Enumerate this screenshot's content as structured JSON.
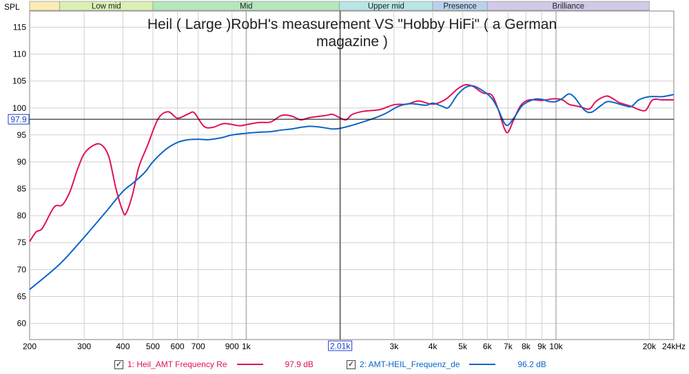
{
  "chart_data": {
    "type": "line",
    "title_lines": [
      "Heil ( Large )RobH's measurement VS \"Hobby HiFi\" ( a German",
      "magazine )"
    ],
    "ylabel": "SPL",
    "xlabel": "",
    "x_scale": "log",
    "xlim": [
      200,
      24000
    ],
    "ylim": [
      57,
      118
    ],
    "y_ticks": [
      60,
      65,
      70,
      75,
      80,
      85,
      90,
      95,
      100,
      105,
      110,
      115
    ],
    "x_ticks": [
      {
        "v": 200,
        "label": "200"
      },
      {
        "v": 300,
        "label": "300"
      },
      {
        "v": 400,
        "label": "400"
      },
      {
        "v": 500,
        "label": "500"
      },
      {
        "v": 600,
        "label": "600"
      },
      {
        "v": 700,
        "label": "700"
      },
      {
        "v": 900,
        "label": "900"
      },
      {
        "v": 1000,
        "label": "1k"
      },
      {
        "v": 3000,
        "label": "3k"
      },
      {
        "v": 4000,
        "label": "4k"
      },
      {
        "v": 5000,
        "label": "5k"
      },
      {
        "v": 6000,
        "label": "6k"
      },
      {
        "v": 7000,
        "label": "7k"
      },
      {
        "v": 8000,
        "label": "8k"
      },
      {
        "v": 9000,
        "label": "9k"
      },
      {
        "v": 10000,
        "label": "10k"
      },
      {
        "v": 20000,
        "label": "20k"
      },
      {
        "v": 24000,
        "label": "24kHz"
      }
    ],
    "grid": true,
    "cursor": {
      "x": 2010,
      "y": 97.9,
      "x_label": "2.01k",
      "y_label": "97.9"
    },
    "bands": [
      {
        "label": "",
        "from": 200,
        "to": 250,
        "color": "#fcecb4"
      },
      {
        "label": "Low mid",
        "from": 250,
        "to": 500,
        "color": "#dcf0b4"
      },
      {
        "label": "Mid",
        "from": 500,
        "to": 2000,
        "color": "#b4e8bc"
      },
      {
        "label": "Upper mid",
        "from": 2000,
        "to": 4000,
        "color": "#b8e6e6"
      },
      {
        "label": "Presence",
        "from": 4000,
        "to": 6000,
        "color": "#b8d2ec"
      },
      {
        "label": "Brilliance",
        "from": 6000,
        "to": 20000,
        "color": "#d2c8e8"
      }
    ],
    "series": [
      {
        "name": "1: Heil_AMT Frequency Re",
        "value_label": "97.9 dB",
        "color": "#e0105a",
        "points": [
          [
            200,
            75.2
          ],
          [
            210,
            77
          ],
          [
            220,
            77.7
          ],
          [
            240,
            81.6
          ],
          [
            255,
            82
          ],
          [
            270,
            84.5
          ],
          [
            285,
            88.5
          ],
          [
            300,
            91.5
          ],
          [
            320,
            93
          ],
          [
            340,
            93.2
          ],
          [
            360,
            91
          ],
          [
            380,
            85
          ],
          [
            400,
            80.8
          ],
          [
            410,
            80.5
          ],
          [
            430,
            84
          ],
          [
            450,
            89
          ],
          [
            480,
            93
          ],
          [
            520,
            98
          ],
          [
            560,
            99.3
          ],
          [
            600,
            98.1
          ],
          [
            650,
            98.9
          ],
          [
            680,
            99.1
          ],
          [
            730,
            96.6
          ],
          [
            780,
            96.4
          ],
          [
            850,
            97.1
          ],
          [
            950,
            96.7
          ],
          [
            1000,
            96.9
          ],
          [
            1100,
            97.3
          ],
          [
            1200,
            97.4
          ],
          [
            1300,
            98.6
          ],
          [
            1400,
            98.5
          ],
          [
            1500,
            97.8
          ],
          [
            1600,
            98.2
          ],
          [
            1800,
            98.6
          ],
          [
            1900,
            98.8
          ],
          [
            2000,
            98.2
          ],
          [
            2100,
            97.8
          ],
          [
            2200,
            98.8
          ],
          [
            2400,
            99.4
          ],
          [
            2700,
            99.7
          ],
          [
            3000,
            100.6
          ],
          [
            3300,
            100.7
          ],
          [
            3600,
            101.3
          ],
          [
            4000,
            100.7
          ],
          [
            4400,
            101.6
          ],
          [
            4800,
            103.5
          ],
          [
            5100,
            104.3
          ],
          [
            5400,
            104
          ],
          [
            5800,
            102.8
          ],
          [
            6200,
            102.4
          ],
          [
            6500,
            99.8
          ],
          [
            6800,
            96.3
          ],
          [
            7000,
            95.5
          ],
          [
            7300,
            97.8
          ],
          [
            7700,
            100.5
          ],
          [
            8200,
            101.5
          ],
          [
            9000,
            101.4
          ],
          [
            9800,
            101.7
          ],
          [
            10500,
            101.5
          ],
          [
            11000,
            100.7
          ],
          [
            12000,
            100.2
          ],
          [
            12800,
            99.8
          ],
          [
            13500,
            101.3
          ],
          [
            14500,
            102.2
          ],
          [
            15200,
            101.8
          ],
          [
            16000,
            101
          ],
          [
            17500,
            100.3
          ],
          [
            18500,
            99.7
          ],
          [
            19500,
            99.6
          ],
          [
            20500,
            101.5
          ],
          [
            22000,
            101.5
          ],
          [
            24000,
            101.5
          ]
        ]
      },
      {
        "name": "2: AMT-HEIL_Frequenz_de",
        "value_label": "96.2 dB",
        "color": "#0a64c8",
        "points": [
          [
            200,
            66.3
          ],
          [
            250,
            71
          ],
          [
            300,
            76
          ],
          [
            350,
            80.5
          ],
          [
            400,
            84.5
          ],
          [
            430,
            86
          ],
          [
            470,
            88
          ],
          [
            500,
            90
          ],
          [
            550,
            92.3
          ],
          [
            600,
            93.6
          ],
          [
            650,
            94.1
          ],
          [
            700,
            94.2
          ],
          [
            750,
            94.1
          ],
          [
            800,
            94.3
          ],
          [
            850,
            94.6
          ],
          [
            900,
            95
          ],
          [
            1000,
            95.3
          ],
          [
            1100,
            95.5
          ],
          [
            1200,
            95.6
          ],
          [
            1300,
            95.9
          ],
          [
            1400,
            96.1
          ],
          [
            1500,
            96.4
          ],
          [
            1600,
            96.6
          ],
          [
            1700,
            96.5
          ],
          [
            1800,
            96.3
          ],
          [
            1900,
            96.1
          ],
          [
            2000,
            96.2
          ],
          [
            2200,
            96.8
          ],
          [
            2500,
            97.8
          ],
          [
            2800,
            98.9
          ],
          [
            3100,
            100.3
          ],
          [
            3400,
            100.8
          ],
          [
            3800,
            100.5
          ],
          [
            4000,
            100.9
          ],
          [
            4300,
            100.3
          ],
          [
            4500,
            100.1
          ],
          [
            4800,
            102.4
          ],
          [
            5100,
            103.8
          ],
          [
            5400,
            104.1
          ],
          [
            5800,
            103.2
          ],
          [
            6200,
            101.8
          ],
          [
            6500,
            99.8
          ],
          [
            6900,
            96.8
          ],
          [
            7300,
            98.1
          ],
          [
            7800,
            100.5
          ],
          [
            8500,
            101.6
          ],
          [
            9000,
            101.6
          ],
          [
            9500,
            101.2
          ],
          [
            10000,
            101.2
          ],
          [
            10500,
            101.8
          ],
          [
            11000,
            102.6
          ],
          [
            11500,
            101.9
          ],
          [
            12300,
            99.7
          ],
          [
            13000,
            99.2
          ],
          [
            14000,
            100.5
          ],
          [
            14800,
            101.2
          ],
          [
            16500,
            100.5
          ],
          [
            17500,
            100.3
          ],
          [
            18500,
            101.5
          ],
          [
            20000,
            102.1
          ],
          [
            22000,
            102.1
          ],
          [
            24000,
            102.5
          ]
        ]
      }
    ]
  },
  "legend": {
    "items": [
      {
        "checked": "✓",
        "name": "1: Heil_AMT Frequency Re",
        "value": "97.9 dB"
      },
      {
        "checked": "✓",
        "name": "2: AMT-HEIL_Frequenz_de",
        "value": "96.2 dB"
      }
    ]
  },
  "colors": {
    "series1": "#e0105a",
    "series2": "#0a64c8",
    "grid": "#cfcfcf",
    "axis": "#808080"
  }
}
